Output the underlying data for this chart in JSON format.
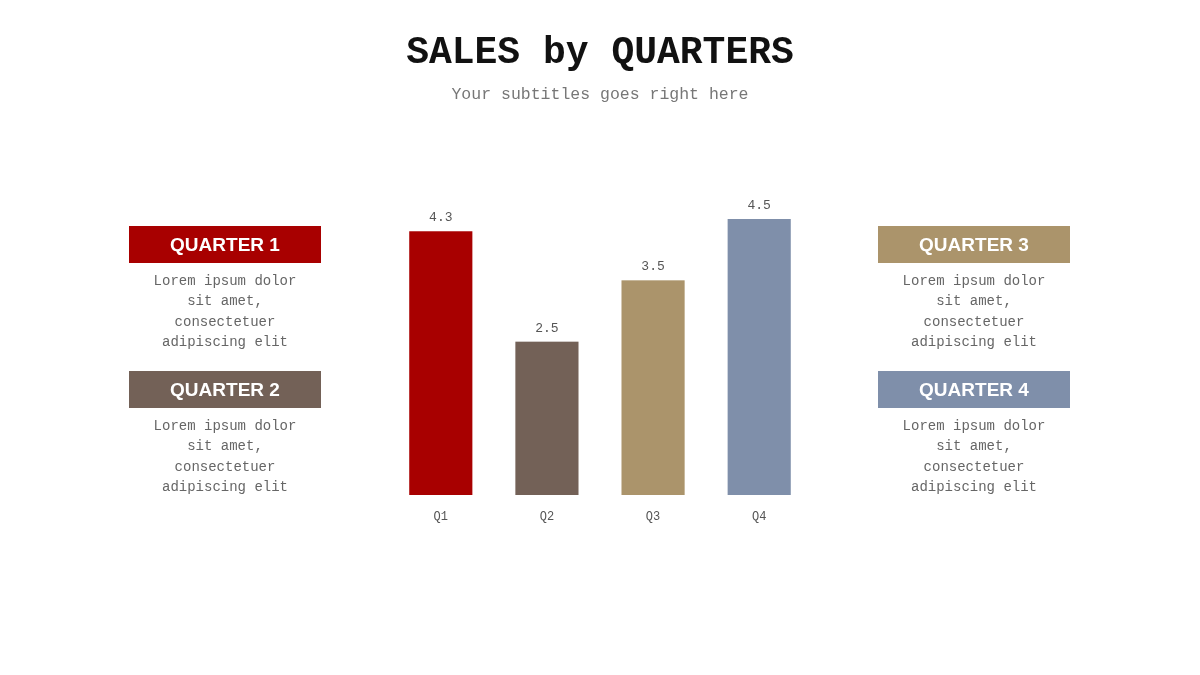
{
  "chart_data": {
    "type": "bar",
    "title": "SALES by QUARTERS",
    "subtitle": "Your subtitles goes right here",
    "categories": [
      "Q1",
      "Q2",
      "Q3",
      "Q4"
    ],
    "values": [
      4.3,
      2.5,
      3.5,
      4.5
    ],
    "colors": [
      "#a80000",
      "#736157",
      "#ab946b",
      "#7f8faa"
    ],
    "data_labels": true,
    "tick_labels": "x",
    "annotations": [
      "QUARTER 1",
      "Lorem ipsum dolor sit amet, consectetuer adipiscing elit",
      "QUARTER 2",
      "Lorem ipsum dolor sit amet, consectetuer adipiscing elit",
      "QUARTER 3",
      "Lorem ipsum dolor sit amet, consectetuer adipiscing elit",
      "QUARTER 4",
      "Lorem ipsum dolor sit amet, consectetuer adipiscing elit"
    ]
  }
}
